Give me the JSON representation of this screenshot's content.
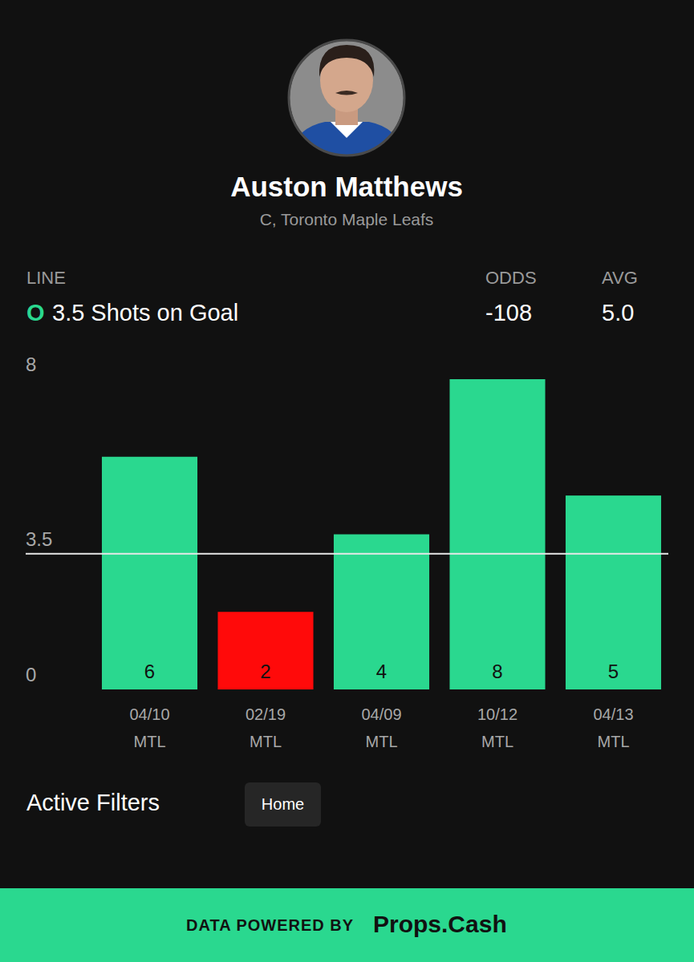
{
  "header": {
    "name": "Auston Matthews",
    "subtitle": "C, Toronto Maple Leafs"
  },
  "line": {
    "label": "LINE",
    "odds_label": "ODDS",
    "avg_label": "AVG",
    "side": "O",
    "text": "3.5 Shots on Goal",
    "odds": "-108",
    "avg": "5.0"
  },
  "chart_data": {
    "type": "bar",
    "categories": [
      "04/10\nMTL",
      "02/19\nMTL",
      "04/09\nMTL",
      "10/12\nMTL",
      "04/13\nMTL"
    ],
    "values": [
      6,
      2,
      4,
      8,
      5
    ],
    "colors": [
      "#2ad88f",
      "#ff0a0a",
      "#2ad88f",
      "#2ad88f",
      "#2ad88f"
    ],
    "ylim": [
      0,
      8
    ],
    "yticks": [
      0,
      3.5,
      8
    ],
    "grid": false,
    "data_labels": true,
    "threshold": 3.5
  },
  "filters": {
    "title": "Active Filters",
    "items": [
      "Home"
    ]
  },
  "footer": {
    "prefix": "DATA POWERED BY",
    "brand": "Props.Cash"
  }
}
